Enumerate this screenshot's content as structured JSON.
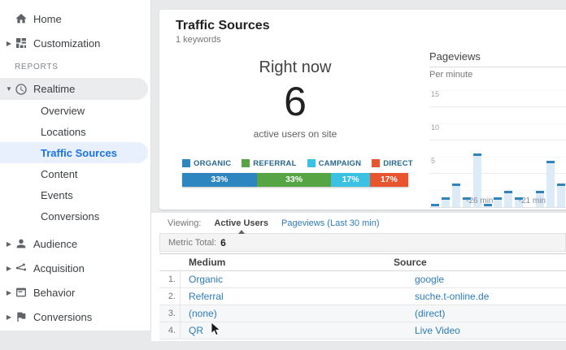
{
  "sidebar": {
    "top_items": [
      {
        "label": "Home"
      },
      {
        "label": "Customization"
      }
    ],
    "section_label": "REPORTS",
    "realtime_label": "Realtime",
    "realtime_children": [
      "Overview",
      "Locations",
      "Traffic Sources",
      "Content",
      "Events",
      "Conversions"
    ],
    "selected_child": "Traffic Sources",
    "bottom_items": [
      "Audience",
      "Acquisition",
      "Behavior",
      "Conversions"
    ]
  },
  "header": {
    "title": "Traffic Sources",
    "subtitle": "1 keywords"
  },
  "right_now": {
    "label": "Right now",
    "count": "6",
    "caption": "active users on site"
  },
  "breakdown": {
    "legend": [
      {
        "label": "ORGANIC",
        "color": "#2e86c0"
      },
      {
        "label": "REFERRAL",
        "color": "#55a545"
      },
      {
        "label": "CAMPAIGN",
        "color": "#3bc1e3"
      },
      {
        "label": "DIRECT",
        "color": "#e8542d"
      }
    ],
    "segments": [
      {
        "label": "33%",
        "value": 33,
        "color": "#2e86c0"
      },
      {
        "label": "33%",
        "value": 33,
        "color": "#55a545"
      },
      {
        "label": "17%",
        "value": 17,
        "color": "#3bc1e3"
      },
      {
        "label": "17%",
        "value": 17,
        "color": "#e8542d"
      }
    ]
  },
  "chart_data": {
    "type": "bar",
    "title": "Pageviews",
    "subtitle": "Per minute",
    "values": [
      0.5,
      1.5,
      3.5,
      1.5,
      8,
      0.5,
      1.5,
      2.5,
      1.5,
      0,
      2.5,
      7,
      3.5
    ],
    "x_tick_labels": [
      {
        "pos": 3.5,
        "label": "-26 min"
      },
      {
        "pos": 8.5,
        "label": "-21 min"
      }
    ],
    "y_ticks": [
      5,
      10,
      15
    ],
    "ylim": [
      0,
      19.5
    ],
    "grid": true,
    "bar_cap_color": "#3183bd",
    "bar_fill_color": "#dcebf6"
  },
  "viewing": {
    "label": "Viewing:",
    "active_tab": "Active Users",
    "link_tab": "Pageviews (Last 30 min)"
  },
  "metric_total": {
    "label": "Metric Total:",
    "value": "6"
  },
  "table": {
    "columns": [
      "Medium",
      "Source"
    ],
    "rows": [
      {
        "num": "1.",
        "medium": "Organic",
        "source": "google"
      },
      {
        "num": "2.",
        "medium": "Referral",
        "source": "suche.t-online.de"
      },
      {
        "num": "3.",
        "medium": "(none)",
        "source": "(direct)"
      },
      {
        "num": "4.",
        "medium": "QR",
        "source": "Live Video"
      }
    ]
  },
  "colors": {
    "accent_blue": "#1a73e8",
    "link_blue": "#2b7bb9"
  }
}
